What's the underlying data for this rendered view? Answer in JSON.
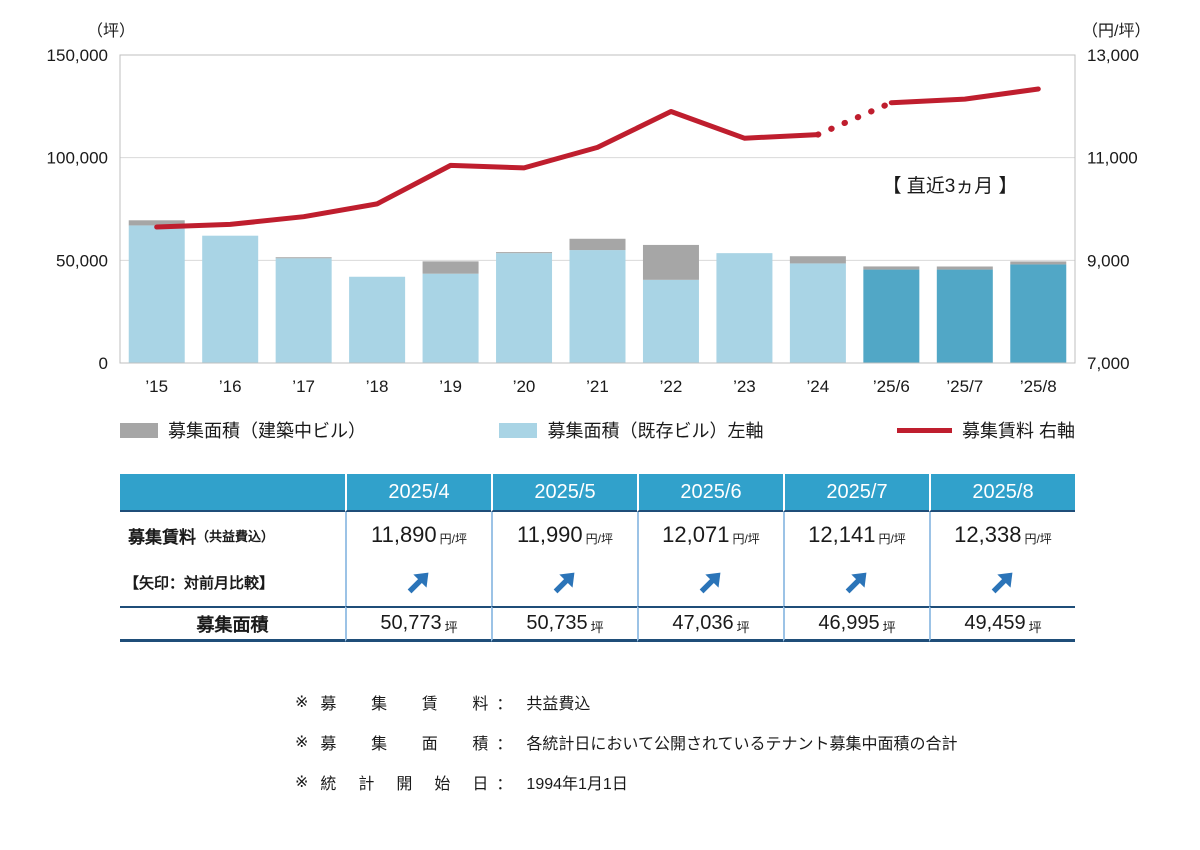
{
  "chart_data": {
    "type": "combo",
    "annotation": "【 直近3ヵ月 】",
    "axes": {
      "left_unit": "（坪）",
      "right_unit": "（円/坪）",
      "left_ticks": [
        "150,000",
        "100,000",
        "50,000",
        "0"
      ],
      "right_ticks": [
        "13,000",
        "11,000",
        "9,000",
        "7,000"
      ]
    },
    "left_axis": {
      "min": 0,
      "max": 150000
    },
    "right_axis": {
      "min": 7000,
      "max": 13000
    },
    "categories": [
      "’15",
      "’16",
      "’17",
      "’18",
      "’19",
      "’20",
      "’21",
      "’22",
      "’23",
      "’24",
      "’25/6",
      "’25/7",
      "’25/8"
    ],
    "bar_series": [
      {
        "name": "募集面積（既存ビル）左軸",
        "values": [
          67000,
          62000,
          51000,
          42000,
          43500,
          53500,
          55000,
          40500,
          53500,
          48500,
          45500,
          45500,
          48000
        ]
      },
      {
        "name": "募集面積（建築中ビル）",
        "values": [
          2500,
          0,
          500,
          0,
          6000,
          500,
          5500,
          17000,
          0,
          3500,
          1536,
          1495,
          1459
        ]
      }
    ],
    "line_series": {
      "name": "募集賃料 右軸",
      "values": [
        9650,
        9700,
        9850,
        10100,
        10850,
        10800,
        11200,
        11900,
        11380,
        11450,
        12071,
        12141,
        12338
      ],
      "dotted_gap_after_index": 9
    },
    "highlight_from_index": 10
  },
  "legend": [
    {
      "label": "募集面積（建築中ビル）",
      "type": "bar",
      "color_key": "bar_construction"
    },
    {
      "label": "募集面積（既存ビル）左軸",
      "type": "bar",
      "color_key": "bar_existing"
    },
    {
      "label": "募集賃料 右軸",
      "type": "line",
      "color_key": "line"
    }
  ],
  "table": {
    "header": [
      "",
      "2025/4",
      "2025/5",
      "2025/6",
      "2025/7",
      "2025/8"
    ],
    "rows": {
      "rent": {
        "label": "募集賃料",
        "label_small": "（共益費込）",
        "unit": "円/坪",
        "values": [
          "11,890",
          "11,990",
          "12,071",
          "12,141",
          "12,338"
        ]
      },
      "arrow": {
        "label": "【矢印：対前月比較】",
        "direction": "up"
      },
      "area": {
        "label": "募集面積",
        "unit": "坪",
        "values": [
          "50,773",
          "50,735",
          "47,036",
          "46,995",
          "49,459"
        ]
      }
    }
  },
  "footnotes": [
    {
      "marker": "※",
      "label": "募集賃料",
      "colon": "：",
      "text": "共益費込"
    },
    {
      "marker": "※",
      "label": "募集面積",
      "colon": "：",
      "text": "各統計日において公開されているテナント募集中面積の合計"
    },
    {
      "marker": "※",
      "label": "統計開始日",
      "colon": "：",
      "text": "1994年1月1日"
    }
  ],
  "colors": {
    "bar_existing": "#a9d4e5",
    "bar_existing_recent": "#51a7c6",
    "bar_construction": "#a6a6a6",
    "line": "#bf1e2e",
    "grid": "#d9d9d9",
    "plot_border": "#bfbfbf",
    "table_header": "#31a1cb",
    "table_separator": "#9cc3e6",
    "table_rule": "#1f4e79",
    "arrow": "#2b74b8"
  }
}
